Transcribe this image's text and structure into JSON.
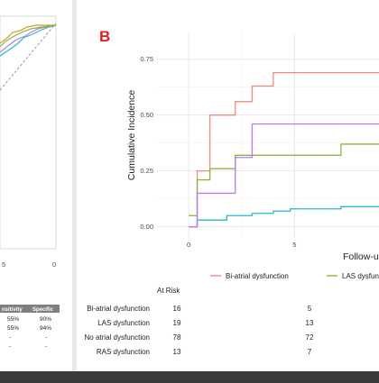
{
  "panel_label": "B",
  "left_panel": {
    "tick_partial": "0",
    "tick_partial_left": "5",
    "table_headers": [
      "nsitivity",
      "Specific"
    ],
    "table_rows": [
      [
        "55%",
        "90%"
      ],
      [
        "55%",
        "94%"
      ],
      [
        "-",
        "-"
      ],
      [
        "-",
        "-"
      ]
    ]
  },
  "chart_data": {
    "type": "line",
    "step": true,
    "title": "",
    "xlabel": "Follow-u",
    "ylabel": "Cumulative Incidence",
    "xlim": [
      -1.5,
      9.0
    ],
    "ylim": [
      -0.05,
      0.87
    ],
    "x_ticks": [
      0,
      5
    ],
    "y_ticks": [
      0.0,
      0.25,
      0.5,
      0.75
    ],
    "y_tick_labels": [
      "0.00",
      "0.25",
      "0.50",
      "0.75"
    ],
    "grid": true,
    "legend_position": "bottom",
    "series": [
      {
        "name": "Bi-atrial dysfunction",
        "color": "#f08a80",
        "points": [
          [
            0,
            0
          ],
          [
            0.4,
            0.25
          ],
          [
            1.0,
            0.5
          ],
          [
            2.2,
            0.56
          ],
          [
            3.0,
            0.63
          ],
          [
            4.0,
            0.69
          ],
          [
            9.0,
            0.69
          ]
        ]
      },
      {
        "name": "LAS dysfunction",
        "color": "#8fb43a",
        "points": [
          [
            0,
            0.05
          ],
          [
            0.4,
            0.21
          ],
          [
            1.0,
            0.26
          ],
          [
            2.2,
            0.32
          ],
          [
            7.2,
            0.37
          ],
          [
            9.0,
            0.37
          ]
        ]
      },
      {
        "name": "No atrial dysfunction",
        "color": "#2ab7cc",
        "points": [
          [
            0,
            0
          ],
          [
            0.4,
            0.03
          ],
          [
            1.8,
            0.05
          ],
          [
            3.0,
            0.06
          ],
          [
            4.0,
            0.07
          ],
          [
            4.8,
            0.08
          ],
          [
            7.2,
            0.09
          ],
          [
            9.0,
            0.09
          ]
        ]
      },
      {
        "name": "RAS dysfunction",
        "color": "#b77ee8",
        "points": [
          [
            0,
            0
          ],
          [
            0.4,
            0.15
          ],
          [
            2.2,
            0.31
          ],
          [
            3.0,
            0.46
          ],
          [
            9.0,
            0.46
          ]
        ]
      }
    ]
  },
  "legend": {
    "items": [
      "Bi-atrial dysfunction",
      "LAS dysfunction"
    ]
  },
  "risk_table": {
    "title": "At Risk",
    "rows": [
      {
        "label": "Bi-atrial dysfunction",
        "values": [
          "16",
          "5"
        ]
      },
      {
        "label": "LAS dysfunction",
        "values": [
          "19",
          "13"
        ]
      },
      {
        "label": "No atrial dysfunction",
        "values": [
          "78",
          "72"
        ]
      },
      {
        "label": "RAS dysfunction",
        "values": [
          "13",
          "7"
        ]
      }
    ]
  }
}
